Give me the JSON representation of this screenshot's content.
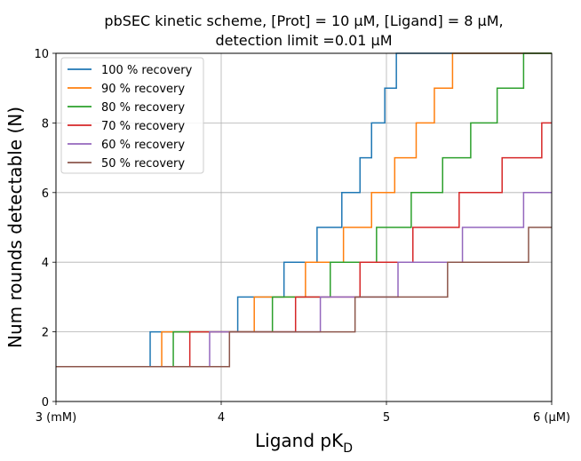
{
  "chart_data": {
    "type": "line",
    "title": "pbSEC kinetic scheme, [Prot] = 10 µM, [Ligand] = 8 µM,",
    "subtitle": "detection limit =0.01 µM",
    "xlabel": "Ligand pK",
    "xlabel_subscript": "D",
    "ylabel": "Num rounds detectable (N)",
    "xlim": [
      3,
      6
    ],
    "ylim": [
      0,
      10
    ],
    "xticks": [
      {
        "value": 3,
        "label": "3 (mM)"
      },
      {
        "value": 4,
        "label": "4"
      },
      {
        "value": 5,
        "label": "5"
      },
      {
        "value": 6,
        "label": "6 (µM)"
      }
    ],
    "yticks": [
      {
        "value": 0,
        "label": "0"
      },
      {
        "value": 2,
        "label": "2"
      },
      {
        "value": 4,
        "label": "4"
      },
      {
        "value": 6,
        "label": "6"
      },
      {
        "value": 8,
        "label": "8"
      },
      {
        "value": 10,
        "label": "10"
      }
    ],
    "grid": true,
    "legend_position": "top-left",
    "series": [
      {
        "name": "100 % recovery",
        "color": "#1f77b4",
        "x": [
          3.0,
          3.57,
          4.1,
          4.38,
          4.58,
          4.73,
          4.84,
          4.91,
          4.99,
          5.06,
          6.0
        ],
        "y": [
          1,
          2,
          3,
          4,
          5,
          6,
          7,
          8,
          9,
          10,
          10
        ]
      },
      {
        "name": "90 % recovery",
        "color": "#ff7f0e",
        "x": [
          3.0,
          3.64,
          4.2,
          4.51,
          4.74,
          4.91,
          5.05,
          5.18,
          5.29,
          5.4,
          6.0
        ],
        "y": [
          1,
          2,
          3,
          4,
          5,
          6,
          7,
          8,
          9,
          10,
          10
        ]
      },
      {
        "name": "80 % recovery",
        "color": "#2ca02c",
        "x": [
          3.0,
          3.71,
          4.31,
          4.66,
          4.94,
          5.15,
          5.34,
          5.51,
          5.67,
          5.83,
          6.0
        ],
        "y": [
          1,
          2,
          3,
          4,
          5,
          6,
          7,
          8,
          9,
          10,
          10
        ]
      },
      {
        "name": "70 % recovery",
        "color": "#d62728",
        "x": [
          3.0,
          3.81,
          4.45,
          4.84,
          5.16,
          5.44,
          5.7,
          5.94,
          6.0
        ],
        "y": [
          1,
          2,
          3,
          4,
          5,
          6,
          7,
          8,
          8
        ]
      },
      {
        "name": "60 % recovery",
        "color": "#9467bd",
        "x": [
          3.0,
          3.93,
          4.6,
          5.07,
          5.46,
          5.83,
          6.0
        ],
        "y": [
          1,
          2,
          3,
          4,
          5,
          6,
          6
        ]
      },
      {
        "name": "50 % recovery",
        "color": "#8c564b",
        "x": [
          3.0,
          4.05,
          4.81,
          5.37,
          5.86,
          6.0
        ],
        "y": [
          1,
          2,
          3,
          4,
          5,
          5
        ]
      }
    ]
  }
}
